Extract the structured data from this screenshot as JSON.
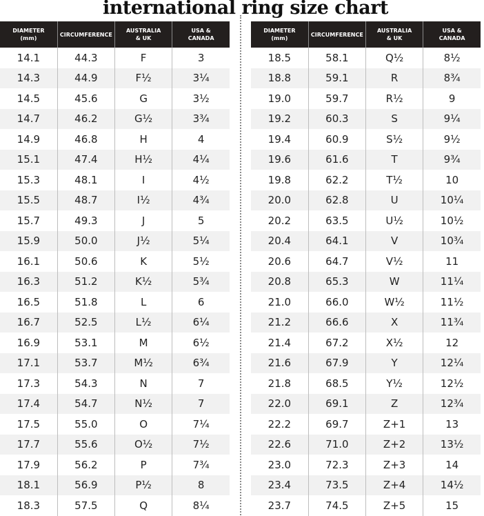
{
  "title": "international ring size chart",
  "headers": [
    "DIAMETER\n(mm)",
    "CIRCUMFERENCE",
    "AUSTRALIA\n& UK",
    "USA &\nCANADA"
  ],
  "left_rows": [
    [
      "14.1",
      "44.3",
      "F",
      "3"
    ],
    [
      "14.3",
      "44.9",
      "F½",
      "3¼"
    ],
    [
      "14.5",
      "45.6",
      "G",
      "3½"
    ],
    [
      "14.7",
      "46.2",
      "G½",
      "3¾"
    ],
    [
      "14.9",
      "46.8",
      "H",
      "4"
    ],
    [
      "15.1",
      "47.4",
      "H½",
      "4¼"
    ],
    [
      "15.3",
      "48.1",
      "I",
      "4½"
    ],
    [
      "15.5",
      "48.7",
      "I½",
      "4¾"
    ],
    [
      "15.7",
      "49.3",
      "J",
      "5"
    ],
    [
      "15.9",
      "50.0",
      "J½",
      "5¼"
    ],
    [
      "16.1",
      "50.6",
      "K",
      "5½"
    ],
    [
      "16.3",
      "51.2",
      "K½",
      "5¾"
    ],
    [
      "16.5",
      "51.8",
      "L",
      "6"
    ],
    [
      "16.7",
      "52.5",
      "L½",
      "6¼"
    ],
    [
      "16.9",
      "53.1",
      "M",
      "6½"
    ],
    [
      "17.1",
      "53.7",
      "M½",
      "6¾"
    ],
    [
      "17.3",
      "54.3",
      "N",
      "7"
    ],
    [
      "17.4",
      "54.7",
      "N½",
      "7"
    ],
    [
      "17.5",
      "55.0",
      "O",
      "7¼"
    ],
    [
      "17.7",
      "55.6",
      "O½",
      "7½"
    ],
    [
      "17.9",
      "56.2",
      "P",
      "7¾"
    ],
    [
      "18.1",
      "56.9",
      "P½",
      "8"
    ],
    [
      "18.3",
      "57.5",
      "Q",
      "8¼"
    ]
  ],
  "right_rows": [
    [
      "18.5",
      "58.1",
      "Q½",
      "8½"
    ],
    [
      "18.8",
      "59.1",
      "R",
      "8¾"
    ],
    [
      "19.0",
      "59.7",
      "R½",
      "9"
    ],
    [
      "19.2",
      "60.3",
      "S",
      "9¼"
    ],
    [
      "19.4",
      "60.9",
      "S½",
      "9½"
    ],
    [
      "19.6",
      "61.6",
      "T",
      "9¾"
    ],
    [
      "19.8",
      "62.2",
      "T½",
      "10"
    ],
    [
      "20.0",
      "62.8",
      "U",
      "10¼"
    ],
    [
      "20.2",
      "63.5",
      "U½",
      "10½"
    ],
    [
      "20.4",
      "64.1",
      "V",
      "10¾"
    ],
    [
      "20.6",
      "64.7",
      "V½",
      "11"
    ],
    [
      "20.8",
      "65.3",
      "W",
      "11¼"
    ],
    [
      "21.0",
      "66.0",
      "W½",
      "11½"
    ],
    [
      "21.2",
      "66.6",
      "X",
      "11¾"
    ],
    [
      "21.4",
      "67.2",
      "X½",
      "12"
    ],
    [
      "21.6",
      "67.9",
      "Y",
      "12¼"
    ],
    [
      "21.8",
      "68.5",
      "Y½",
      "12½"
    ],
    [
      "22.0",
      "69.1",
      "Z",
      "12¾"
    ],
    [
      "22.2",
      "69.7",
      "Z+1",
      "13"
    ],
    [
      "22.6",
      "71.0",
      "Z+2",
      "13½"
    ],
    [
      "23.0",
      "72.3",
      "Z+3",
      "14"
    ],
    [
      "23.4",
      "73.5",
      "Z+4",
      "14½"
    ],
    [
      "23.7",
      "74.5",
      "Z+5",
      "15"
    ]
  ]
}
